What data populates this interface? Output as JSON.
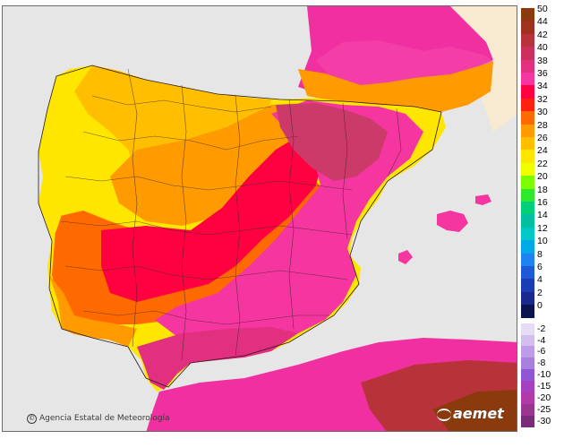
{
  "map": {
    "credit": "Agencia Estatal de Meteorología",
    "brand": "aemet",
    "colors": {
      "sea": "#e6e6e6",
      "land_outside": "#e0e0e0",
      "borders": "#3a2a2a"
    }
  },
  "legend": {
    "positive": [
      {
        "label": "50",
        "color": "#8b3a0e"
      },
      {
        "label": "44",
        "color": "#a0311f"
      },
      {
        "label": "42",
        "color": "#b8323a"
      },
      {
        "label": "40",
        "color": "#cc2e5e"
      },
      {
        "label": "38",
        "color": "#e0307f"
      },
      {
        "label": "36",
        "color": "#f535a0"
      },
      {
        "label": "34",
        "color": "#ff0040"
      },
      {
        "label": "32",
        "color": "#ff2010"
      },
      {
        "label": "30",
        "color": "#ff6a00"
      },
      {
        "label": "28",
        "color": "#ff9a00"
      },
      {
        "label": "26",
        "color": "#ffbf00"
      },
      {
        "label": "24",
        "color": "#ffe600"
      },
      {
        "label": "22",
        "color": "#f0ff00"
      },
      {
        "label": "20",
        "color": "#7cfc00"
      },
      {
        "label": "18",
        "color": "#2ee82e"
      },
      {
        "label": "16",
        "color": "#00d07a"
      },
      {
        "label": "14",
        "color": "#00c0a0"
      },
      {
        "label": "12",
        "color": "#00c8c8"
      },
      {
        "label": "10",
        "color": "#00a8e8"
      },
      {
        "label": "8",
        "color": "#1e82f0"
      },
      {
        "label": "6",
        "color": "#1e5ad8"
      },
      {
        "label": "4",
        "color": "#1a3cb4"
      },
      {
        "label": "2",
        "color": "#1a2a8c"
      },
      {
        "label": "0",
        "color": "#0c1450"
      }
    ],
    "negative": [
      {
        "label": "-2",
        "color": "#e6dcf5"
      },
      {
        "label": "-4",
        "color": "#d2bfee"
      },
      {
        "label": "-6",
        "color": "#bd9ee6"
      },
      {
        "label": "-8",
        "color": "#a87ede"
      },
      {
        "label": "-10",
        "color": "#8f57d6"
      },
      {
        "label": "-15",
        "color": "#a63fc0"
      },
      {
        "label": "-20",
        "color": "#b23aa8"
      },
      {
        "label": "-25",
        "color": "#9a3590"
      },
      {
        "label": "-30",
        "color": "#7a2a78"
      }
    ]
  }
}
